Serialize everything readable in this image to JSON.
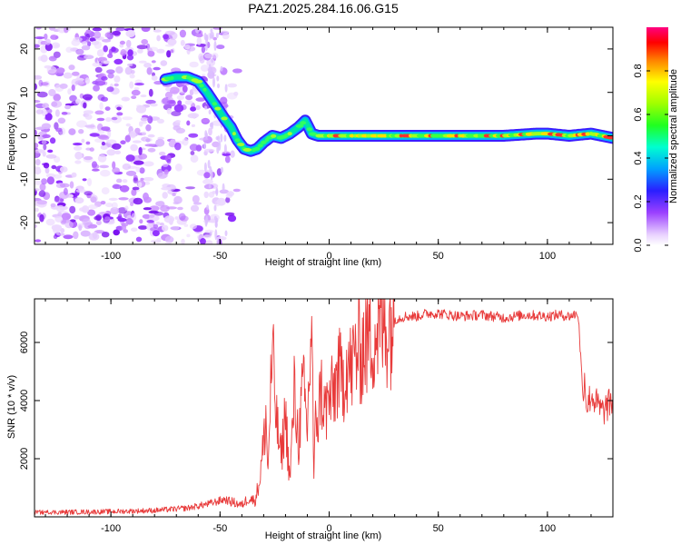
{
  "title": "PAZ1.2025.284.16.06.G15",
  "chart_data": [
    {
      "id": "spectrogram",
      "type": "heatmap",
      "xlabel": "Height of straight line (km)",
      "ylabel": "Frequency (Hz)",
      "xlim": [
        -135,
        130
      ],
      "ylim": [
        -25,
        25
      ],
      "xticks": [
        -100,
        -50,
        0,
        50,
        100
      ],
      "yticks": [
        -20,
        -10,
        0,
        10,
        20
      ],
      "colorbar": {
        "label": "Normalized spectral amplitude",
        "range": [
          0,
          1
        ],
        "ticks": [
          0.0,
          0.2,
          0.4,
          0.6,
          0.8
        ],
        "tick_labels": [
          "0.0",
          "0.2",
          "0.4",
          "0.6",
          "0.8"
        ]
      },
      "ridge": {
        "x": [
          -75,
          -70,
          -65,
          -60,
          -56,
          -52,
          -48,
          -45,
          -42,
          -39,
          -36,
          -33,
          -30,
          -26,
          -22,
          -18,
          -14,
          -11,
          -8,
          -5,
          0,
          20,
          40,
          60,
          80,
          95,
          100,
          110,
          120,
          130
        ],
        "y": [
          13,
          13.5,
          13.5,
          12.5,
          10,
          7,
          4,
          2,
          -1,
          -3,
          -3.5,
          -3,
          -1.5,
          0,
          -0.5,
          0.5,
          2,
          3.5,
          0.5,
          0,
          0,
          0,
          0,
          0,
          0,
          0.5,
          0.5,
          0,
          0.5,
          -0.5
        ]
      },
      "noise_region_x": [
        -135,
        -50
      ]
    },
    {
      "id": "snr",
      "type": "line",
      "xlabel": "Height of straight line (km)",
      "ylabel": "SNR (10 * v/v)",
      "xlim": [
        -135,
        130
      ],
      "ylim": [
        0,
        7500
      ],
      "xticks": [
        -100,
        -50,
        0,
        50,
        100
      ],
      "yticks": [
        2000,
        4000,
        6000
      ],
      "line_color": "#e83a3a",
      "series": [
        {
          "name": "SNR",
          "x": [
            -135,
            -100,
            -80,
            -65,
            -55,
            -48,
            -44,
            -40,
            -37,
            -34,
            -32,
            -30,
            -29,
            -28,
            -27,
            -26,
            -24,
            -22,
            -20,
            -18,
            -16,
            -14,
            -12,
            -10,
            -8,
            -7,
            -6,
            -5,
            -4,
            -2,
            0,
            2,
            4,
            6,
            8,
            10,
            12,
            15,
            18,
            22,
            26,
            30,
            35,
            40,
            45,
            50,
            60,
            70,
            80,
            90,
            100,
            105,
            110,
            114,
            115,
            116,
            117,
            118,
            120,
            125,
            130
          ],
          "y": [
            150,
            180,
            220,
            300,
            450,
            600,
            500,
            400,
            650,
            550,
            1200,
            2500,
            3500,
            1500,
            4000,
            5500,
            3200,
            2000,
            3600,
            1200,
            4200,
            2600,
            4500,
            3000,
            7000,
            1200,
            3800,
            3200,
            4500,
            3600,
            4000,
            4200,
            5000,
            4600,
            5400,
            5000,
            5600,
            5800,
            6200,
            6400,
            6600,
            6800,
            6900,
            6900,
            7000,
            7000,
            6900,
            6950,
            6850,
            6950,
            6900,
            6950,
            6900,
            7000,
            6000,
            4200,
            4800,
            3800,
            4200,
            3600,
            4000
          ]
        }
      ]
    }
  ]
}
